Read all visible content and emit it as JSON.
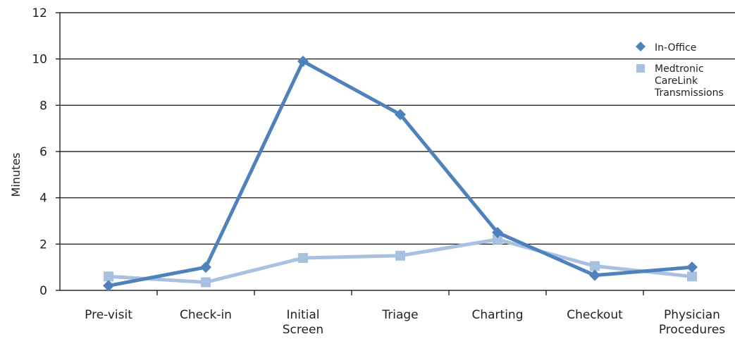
{
  "chart_data": {
    "type": "line",
    "title": "",
    "xlabel": "",
    "ylabel": "Minutes",
    "ylim": [
      0,
      12
    ],
    "yticks": [
      0,
      2,
      4,
      6,
      8,
      10,
      12
    ],
    "grid": "horizontal",
    "legend_position": "top-right",
    "categories": [
      [
        "Pre-visit"
      ],
      [
        "Check-in"
      ],
      [
        "Initial",
        "Screen"
      ],
      [
        "Triage"
      ],
      [
        "Charting"
      ],
      [
        "Checkout"
      ],
      [
        "Physician",
        "Procedures"
      ]
    ],
    "series": [
      {
        "name": "In-Office",
        "marker": "diamond",
        "color": "#4f81bd",
        "values": [
          0.2,
          1.0,
          9.9,
          7.6,
          2.5,
          0.65,
          1.0
        ]
      },
      {
        "name": [
          "Medtronic",
          "CareLink",
          "Transmissions"
        ],
        "marker": "square",
        "color": "#a9c1e0",
        "values": [
          0.6,
          0.35,
          1.4,
          1.5,
          2.2,
          1.05,
          0.6
        ]
      }
    ]
  }
}
